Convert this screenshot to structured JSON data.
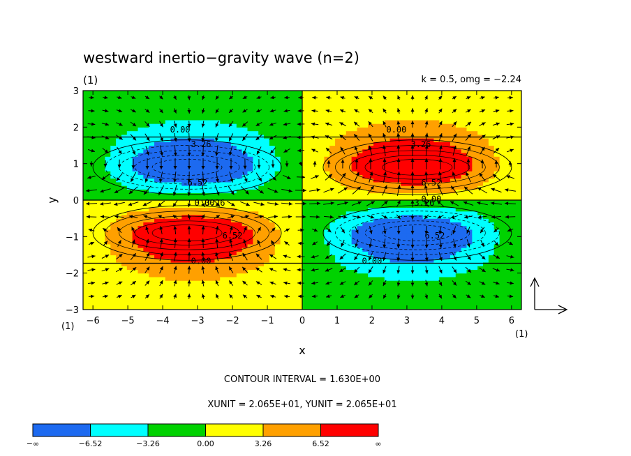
{
  "chart_data": {
    "type": "heatmap",
    "title": "westward inertio−gravity wave (n=2)",
    "panel_label": "(1)",
    "subtitle": "k = 0.5, omg = −2.24",
    "xlabel": "x",
    "ylabel": "y",
    "xlim": [
      -6.283,
      6.283
    ],
    "ylim": [
      -3,
      3
    ],
    "x_ticks": [
      "−6",
      "−5",
      "−4",
      "−3",
      "−2",
      "−1",
      "0",
      "1",
      "2",
      "3",
      "4",
      "5",
      "6"
    ],
    "y_ticks": [
      "−3",
      "−2",
      "−1",
      "0",
      "1",
      "2",
      "3"
    ],
    "x_unit_label": "(1)",
    "y_unit_label": "(1)",
    "contour_interval_text": "CONTOUR INTERVAL = 1.630E+00",
    "unit_vector_text": "XUNIT = 2.065E+01, YUNIT = 2.065E+01",
    "contour_labels": [
      "0.00",
      "3.26",
      "6.52",
      "0.00",
      "3.26",
      "6.52",
      "0.00",
      "0.00",
      "3.26",
      "6.52",
      "0.00",
      "3.26",
      "6.52",
      "0.00"
    ],
    "extrema": [
      {
        "x": -3.3,
        "y": 0.9,
        "value": -8.2
      },
      {
        "x": 3.3,
        "y": 0.9,
        "value": 8.2
      },
      {
        "x": -3.3,
        "y": -0.9,
        "value": 8.2
      },
      {
        "x": 3.3,
        "y": -0.9,
        "value": -8.2
      }
    ],
    "legend": {
      "tick_labels": [
        "−∞",
        "−6.52",
        "−3.26",
        "0.00",
        "3.26",
        "6.52",
        "∞"
      ],
      "levels": [
        -6.52,
        -3.26,
        0.0,
        3.26,
        6.52
      ],
      "colors": [
        "#1d6af0",
        "#00ffff",
        "#00d200",
        "#ffff00",
        "#ffa000",
        "#ff0000"
      ]
    }
  }
}
